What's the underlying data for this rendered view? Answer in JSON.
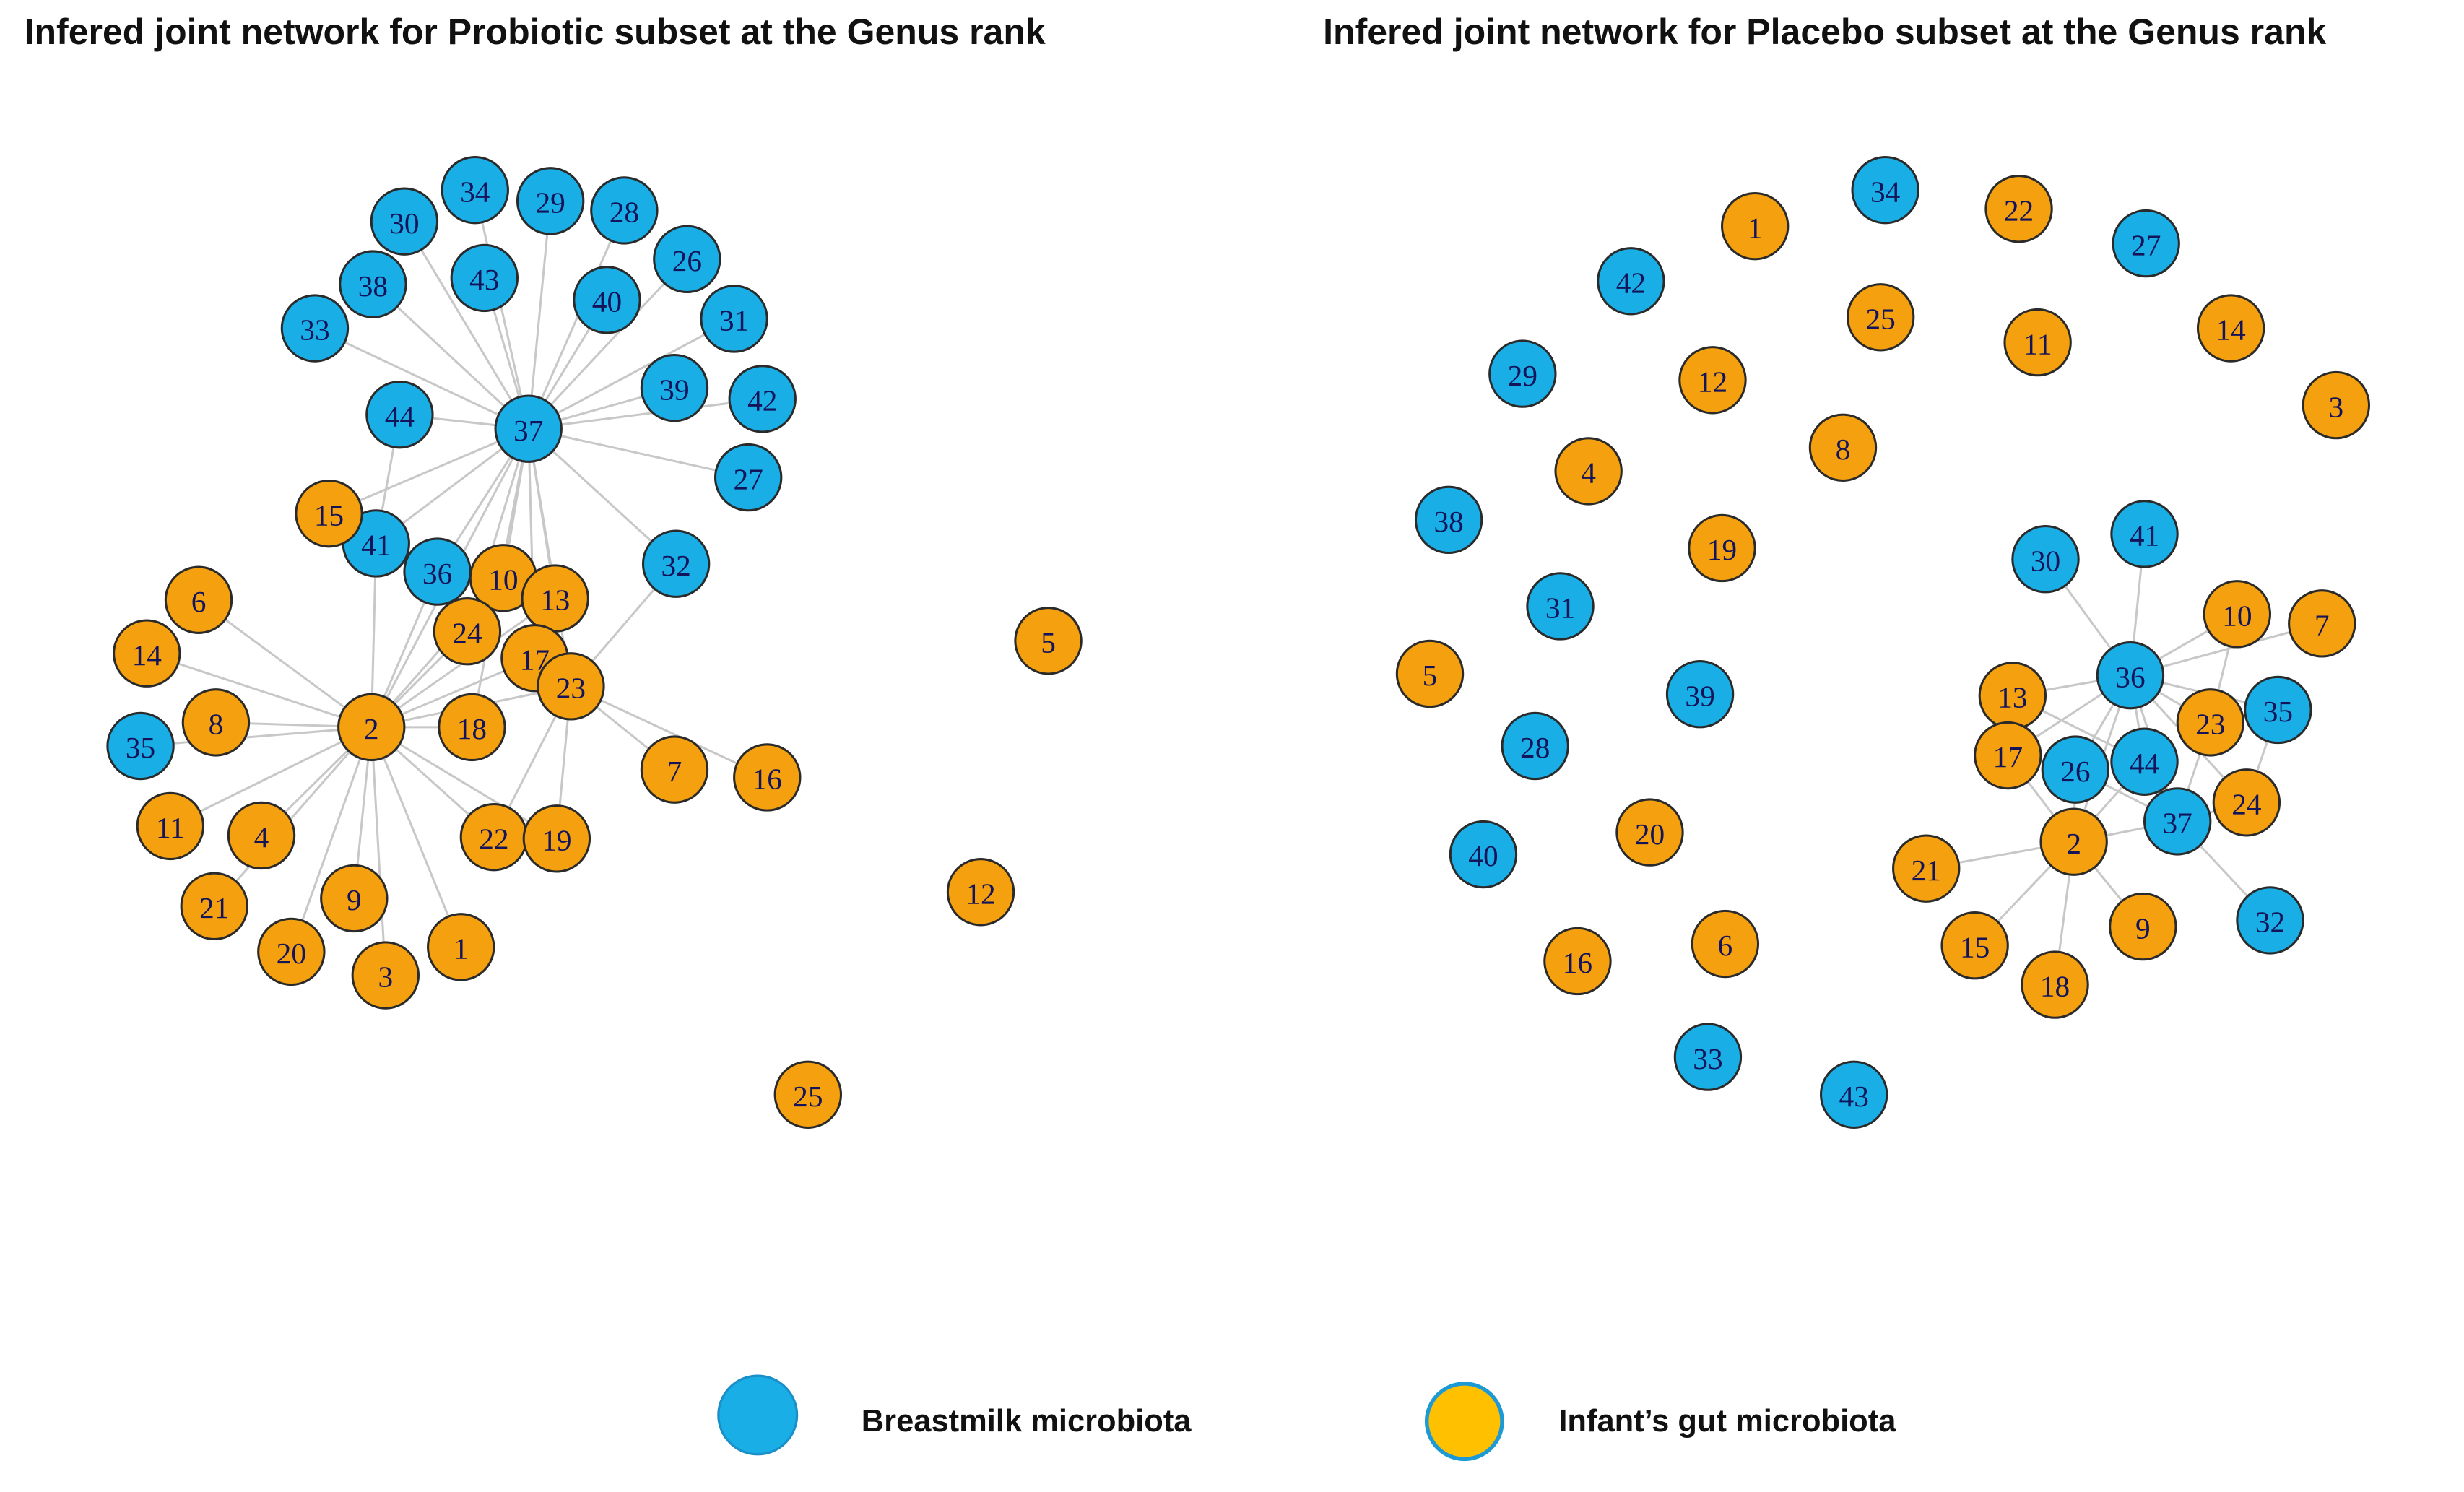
{
  "networks": [
    {
      "title": "Infered joint network for Probiotic subset at the Genus rank",
      "breastmilk_nodes": [
        "30",
        "34",
        "29",
        "28",
        "26",
        "43",
        "40",
        "31",
        "38",
        "33",
        "44",
        "37",
        "39",
        "42",
        "27",
        "41",
        "36",
        "32",
        "35"
      ],
      "infant_nodes": [
        "15",
        "10",
        "13",
        "6",
        "14",
        "24",
        "17",
        "23",
        "8",
        "2",
        "18",
        "7",
        "16",
        "11",
        "4",
        "22",
        "19",
        "9",
        "21",
        "20",
        "3",
        "1",
        "5",
        "12",
        "25"
      ]
    },
    {
      "title": "Infered joint network for Placebo subset at the Genus rank",
      "breastmilk_nodes": [
        "34",
        "27",
        "42",
        "29",
        "38",
        "31",
        "39",
        "28",
        "40",
        "33",
        "43",
        "30",
        "41",
        "36",
        "35",
        "26",
        "44",
        "37",
        "32"
      ],
      "infant_nodes": [
        "1",
        "22",
        "25",
        "11",
        "14",
        "3",
        "12",
        "8",
        "4",
        "19",
        "5",
        "20",
        "16",
        "6",
        "10",
        "7",
        "13",
        "23",
        "17",
        "24",
        "2",
        "21",
        "9",
        "15",
        "18"
      ]
    }
  ],
  "legend": [
    {
      "label": "Breastmilk microbiota",
      "color": "#19aee6"
    },
    {
      "label": "Infant’s gut microbiota",
      "color": "#f5a00f"
    }
  ]
}
